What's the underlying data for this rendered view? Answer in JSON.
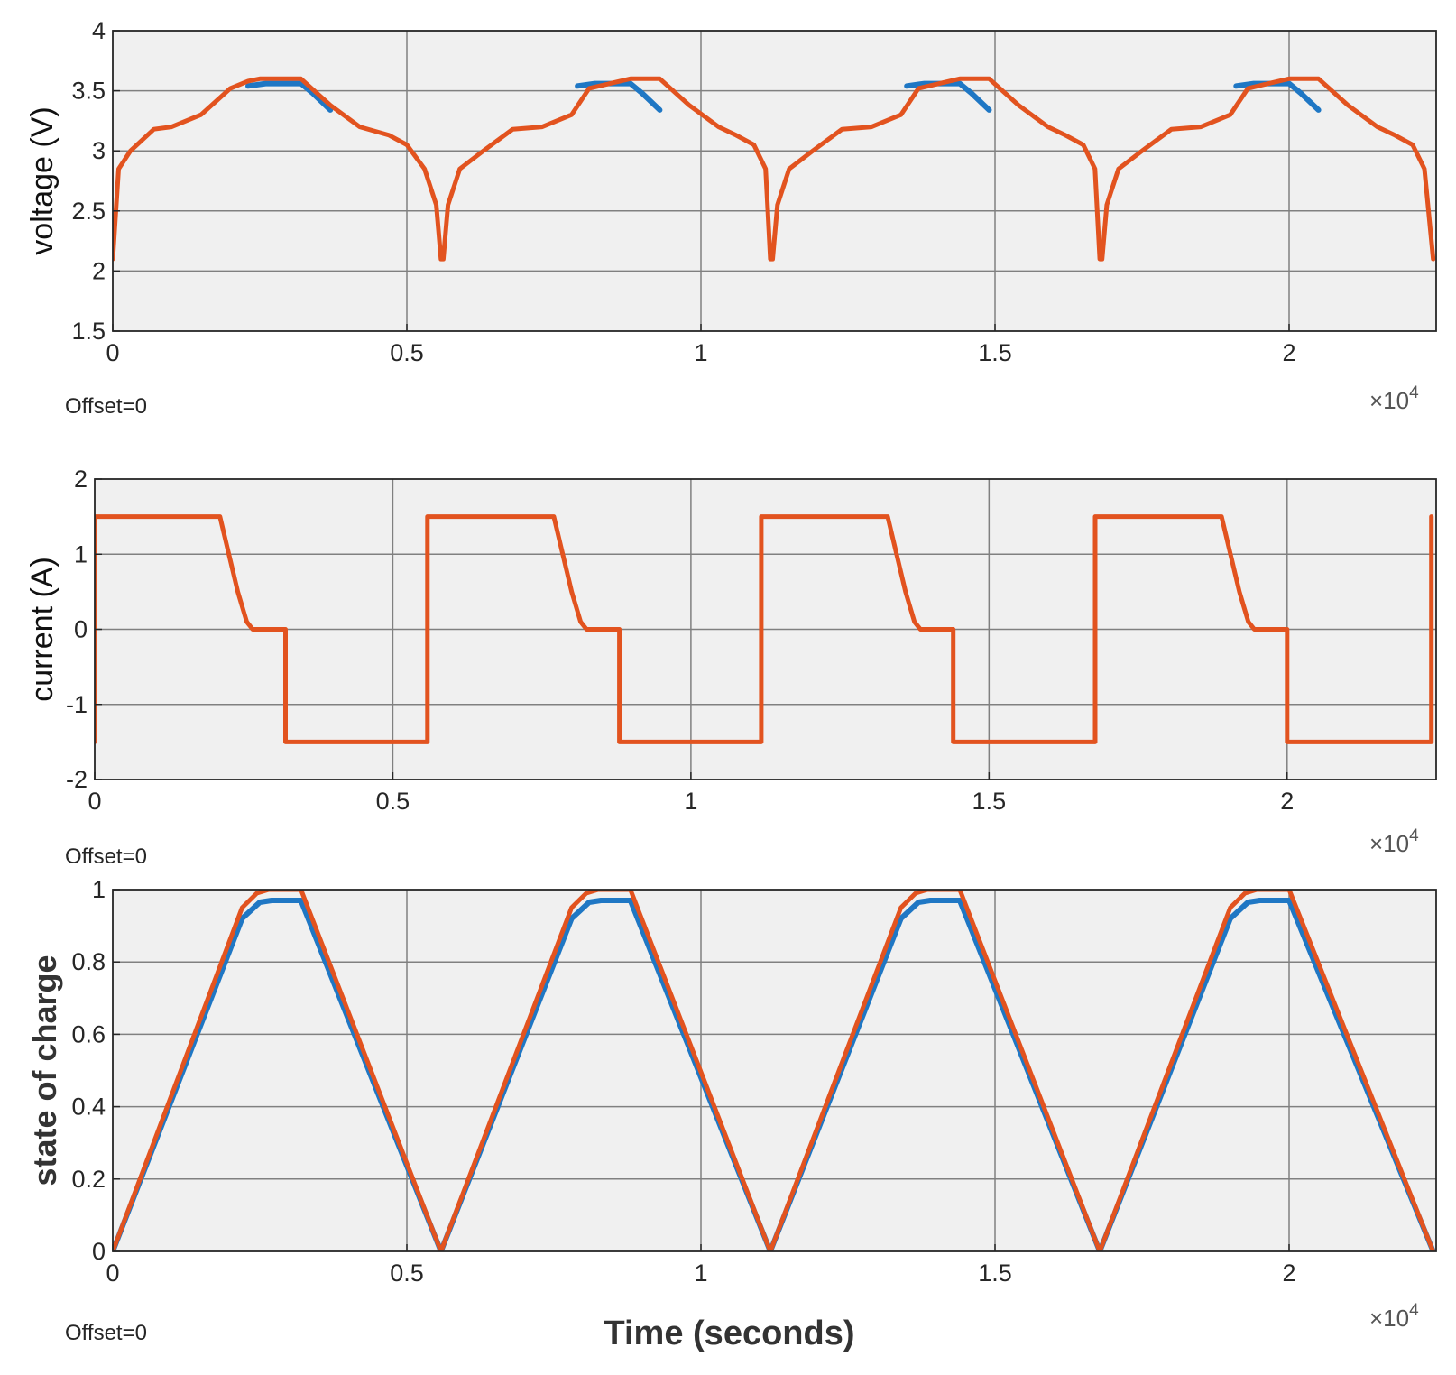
{
  "colors": {
    "plot_background": "#f0f0f0",
    "grid": "#808080",
    "series_primary": "#e2531f",
    "series_secondary": "#1f77c4"
  },
  "chart_data": [
    {
      "type": "line",
      "ylabel": "voltage (V)",
      "xlabel": "",
      "xlim": [
        0,
        22500
      ],
      "ylim": [
        1.5,
        4
      ],
      "x_ticks": [
        "0",
        "0.5",
        "1",
        "1.5",
        "2"
      ],
      "y_ticks": [
        "1.5",
        "2",
        "2.5",
        "3",
        "3.5",
        "4"
      ],
      "x_exponent": "×10",
      "x_exponent_power": "4",
      "offset_text": "Offset=0",
      "grid": true,
      "series": [
        {
          "color": "#e2531f",
          "x": [
            0,
            100,
            300,
            700,
            1000,
            1500,
            2000,
            2300,
            2500,
            3200,
            3700,
            4200,
            4700,
            5000,
            5300,
            5500,
            5580,
            5620,
            5700,
            5900,
            6300,
            6800,
            7300,
            7800,
            8100,
            8800,
            9300,
            9800,
            10300,
            10600,
            10900,
            11100,
            11180,
            11220,
            11300,
            11500,
            11900,
            12400,
            12900,
            13400,
            13700,
            14400,
            14900,
            15400,
            15900,
            16200,
            16500,
            16700,
            16780,
            16820,
            16900,
            17100,
            17500,
            18000,
            18500,
            19000,
            19300,
            20000,
            20500,
            21000,
            21500,
            21800,
            22100,
            22300,
            22450
          ],
          "values": [
            2.1,
            2.85,
            3.0,
            3.18,
            3.2,
            3.3,
            3.52,
            3.58,
            3.6,
            3.6,
            3.38,
            3.2,
            3.13,
            3.05,
            2.85,
            2.55,
            2.1,
            2.1,
            2.55,
            2.85,
            3.0,
            3.18,
            3.2,
            3.3,
            3.52,
            3.6,
            3.6,
            3.38,
            3.2,
            3.13,
            3.05,
            2.85,
            2.1,
            2.1,
            2.55,
            2.85,
            3.0,
            3.18,
            3.2,
            3.3,
            3.52,
            3.6,
            3.6,
            3.38,
            3.2,
            3.13,
            3.05,
            2.85,
            2.1,
            2.1,
            2.55,
            2.85,
            3.0,
            3.18,
            3.2,
            3.3,
            3.52,
            3.6,
            3.6,
            3.38,
            3.2,
            3.13,
            3.05,
            2.85,
            2.1
          ]
        },
        {
          "color": "#1f77c4",
          "x": [
            2300,
            2600,
            3200,
            3400,
            3700
          ],
          "values": [
            3.54,
            3.56,
            3.56,
            3.48,
            3.34
          ]
        },
        {
          "color": "#1f77c4",
          "x": [
            7900,
            8200,
            8800,
            9000,
            9300
          ],
          "values": [
            3.54,
            3.56,
            3.56,
            3.48,
            3.34
          ]
        },
        {
          "color": "#1f77c4",
          "x": [
            13500,
            13800,
            14400,
            14600,
            14900
          ],
          "values": [
            3.54,
            3.56,
            3.56,
            3.48,
            3.34
          ]
        },
        {
          "color": "#1f77c4",
          "x": [
            19100,
            19400,
            20000,
            20200,
            20500
          ],
          "values": [
            3.54,
            3.56,
            3.56,
            3.48,
            3.34
          ]
        }
      ]
    },
    {
      "type": "line",
      "ylabel": "current (A)",
      "xlabel": "",
      "xlim": [
        0,
        22500
      ],
      "ylim": [
        -2,
        2
      ],
      "x_ticks": [
        "0",
        "0.5",
        "1",
        "1.5",
        "2"
      ],
      "y_ticks": [
        "-2",
        "-1",
        "0",
        "1",
        "2"
      ],
      "x_exponent": "×10",
      "x_exponent_power": "4",
      "offset_text": "Offset=0",
      "grid": true,
      "series": [
        {
          "color": "#e2531f",
          "x": [
            0,
            0,
            2100,
            2250,
            2400,
            2550,
            2650,
            3200,
            3200,
            5580,
            5580,
            7700,
            7850,
            8000,
            8150,
            8250,
            8800,
            8800,
            11180,
            11180,
            13300,
            13450,
            13600,
            13750,
            13850,
            14400,
            14400,
            16780,
            16780,
            18900,
            19050,
            19200,
            19350,
            19450,
            20000,
            20000,
            22420,
            22420
          ],
          "values": [
            -1.5,
            1.5,
            1.5,
            1.0,
            0.5,
            0.1,
            0.0,
            0.0,
            -1.5,
            -1.5,
            1.5,
            1.5,
            1.0,
            0.5,
            0.1,
            0.0,
            0.0,
            -1.5,
            -1.5,
            1.5,
            1.5,
            1.0,
            0.5,
            0.1,
            0.0,
            0.0,
            -1.5,
            -1.5,
            1.5,
            1.5,
            1.0,
            0.5,
            0.1,
            0.0,
            0.0,
            -1.5,
            -1.5,
            1.5
          ]
        }
      ]
    },
    {
      "type": "line",
      "ylabel": "state of charge",
      "xlabel": "Time (seconds)",
      "xlim": [
        0,
        22500
      ],
      "ylim": [
        0,
        1
      ],
      "x_ticks": [
        "0",
        "0.5",
        "1",
        "1.5",
        "2"
      ],
      "y_ticks": [
        "0",
        "0.2",
        "0.4",
        "0.6",
        "0.8",
        "1"
      ],
      "x_exponent": "×10",
      "x_exponent_power": "4",
      "offset_text": "Offset=0",
      "grid": true,
      "series": [
        {
          "color": "#1f77c4",
          "x": [
            0,
            2200,
            2500,
            2700,
            3200,
            5580,
            7800,
            8100,
            8300,
            8800,
            11180,
            13400,
            13700,
            13900,
            14400,
            16780,
            19000,
            19300,
            19500,
            20000,
            22450
          ],
          "values": [
            0.0,
            0.92,
            0.965,
            0.97,
            0.97,
            0.0,
            0.92,
            0.965,
            0.97,
            0.97,
            0.0,
            0.92,
            0.965,
            0.97,
            0.97,
            0.0,
            0.92,
            0.965,
            0.97,
            0.97,
            0.0
          ]
        },
        {
          "color": "#e2531f",
          "x": [
            0,
            2200,
            2450,
            2650,
            3200,
            5580,
            7800,
            8050,
            8250,
            8800,
            11180,
            13400,
            13650,
            13850,
            14400,
            16780,
            19000,
            19250,
            19450,
            20000,
            22450
          ],
          "values": [
            0.0,
            0.95,
            0.99,
            1.0,
            1.0,
            0.0,
            0.95,
            0.99,
            1.0,
            1.0,
            0.0,
            0.95,
            0.99,
            1.0,
            1.0,
            0.0,
            0.95,
            0.99,
            1.0,
            1.0,
            0.0
          ]
        }
      ]
    }
  ]
}
